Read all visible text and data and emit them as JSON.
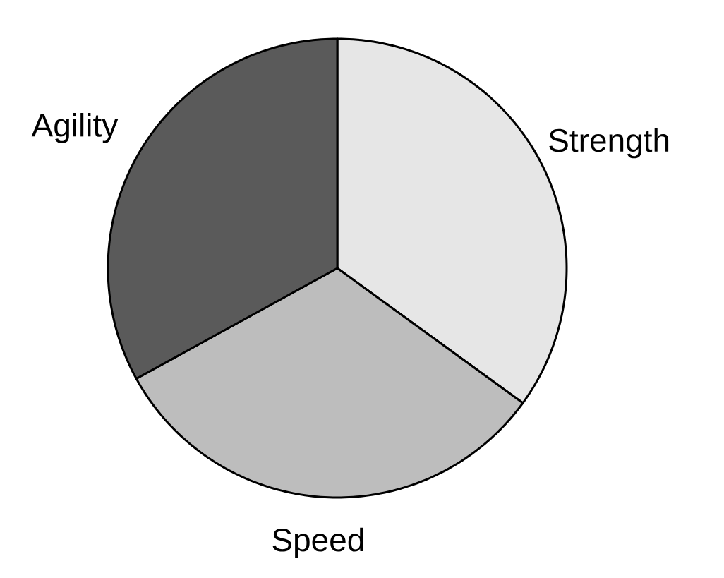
{
  "chart_data": {
    "type": "pie",
    "categories": [
      "Strength",
      "Speed",
      "Agility"
    ],
    "values": [
      35,
      32,
      33
    ],
    "colors": [
      "#e6e6e6",
      "#bdbdbd",
      "#5a5a5a"
    ]
  }
}
